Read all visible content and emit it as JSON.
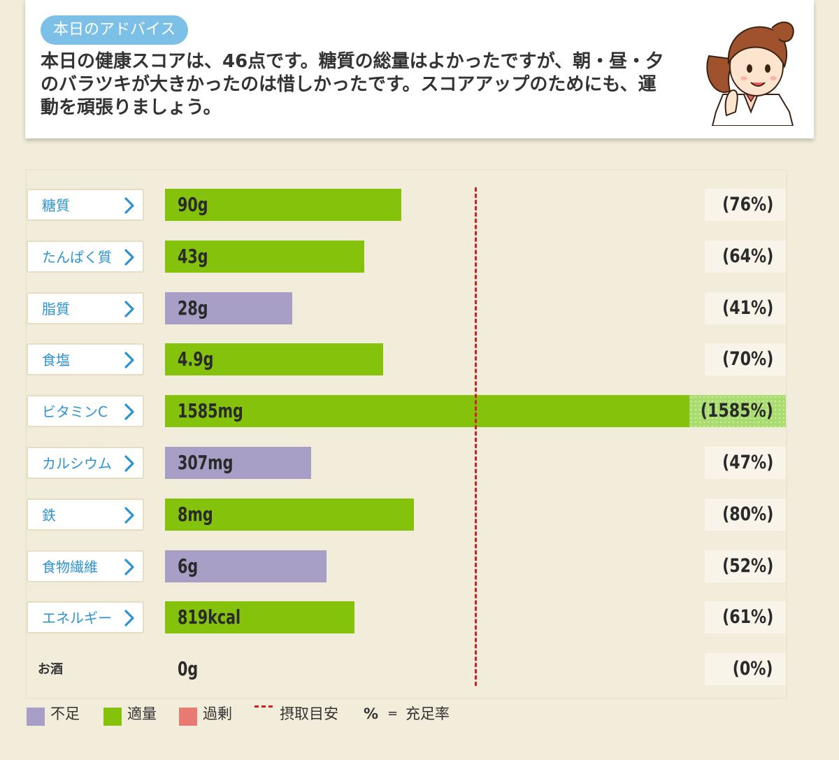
{
  "advice": {
    "badge": "本日のアドバイス",
    "text": "本日の健康スコアは、46点です。糖質の総量はよかったですが、朝・昼・夕のバラツキが大きかったのは惜しかったです。スコアアップのためにも、運動を頑張りましょう。"
  },
  "colors": {
    "shortage": "#a79fc6",
    "adequate": "#85c20c",
    "excess": "#e77a72",
    "reference_line": "#d21f1f",
    "label_blue": "#2f93cf"
  },
  "chart_data": {
    "type": "bar",
    "orientation": "horizontal",
    "reference_percent": 100,
    "categories": [
      "糖質",
      "たんぱく質",
      "脂質",
      "食塩",
      "ビタミンC",
      "カルシウム",
      "鉄",
      "食物繊維",
      "エネルギー",
      "お酒"
    ],
    "amounts": [
      "90g",
      "43g",
      "28g",
      "4.9g",
      "1585mg",
      "307mg",
      "8mg",
      "6g",
      "819kcal",
      "0g"
    ],
    "percent": [
      76,
      64,
      41,
      70,
      1585,
      47,
      80,
      52,
      61,
      0
    ],
    "percent_labels": [
      "(76%)",
      "(64%)",
      "(41%)",
      "(70%)",
      "(1585%)",
      "(47%)",
      "(80%)",
      "(52%)",
      "(61%)",
      "(0%)"
    ],
    "status": [
      "adequate",
      "adequate",
      "shortage",
      "adequate",
      "adequate",
      "shortage",
      "adequate",
      "shortage",
      "adequate",
      "none"
    ]
  },
  "legend": {
    "shortage": "不足",
    "adequate": "適量",
    "excess": "過剰",
    "reference": "摂取目安",
    "percent_symbol": "%",
    "equals": "=",
    "percent_meaning": "充足率"
  }
}
